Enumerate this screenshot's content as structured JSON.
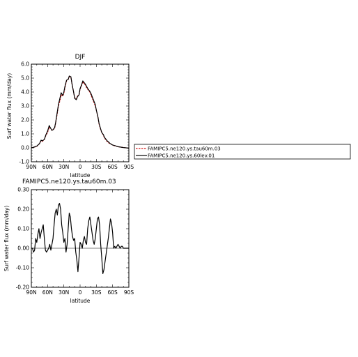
{
  "chart_data": [
    {
      "type": "line",
      "title": "DJF",
      "xlabel": "latitude",
      "ylabel": "Surf water flux (mm/day)",
      "x_categories": [
        "90N",
        "60N",
        "30N",
        "0",
        "30S",
        "60S",
        "90S"
      ],
      "xlim": [
        90,
        -90
      ],
      "ylim": [
        -1.0,
        6.0
      ],
      "y_ticks": [
        "-1.0",
        "0.0",
        "1.0",
        "2.0",
        "3.0",
        "4.0",
        "5.0",
        "6.0"
      ],
      "x": [
        90,
        85,
        80,
        75,
        72,
        70,
        66,
        63,
        60,
        57,
        55,
        52,
        50,
        47,
        45,
        42,
        40,
        37,
        35,
        32,
        30,
        28,
        25,
        22,
        20,
        17,
        15,
        12,
        10,
        7,
        5,
        2,
        0,
        -3,
        -5,
        -7,
        -10,
        -12,
        -15,
        -18,
        -20,
        -22,
        -25,
        -28,
        -30,
        -33,
        -35,
        -38,
        -40,
        -43,
        -45,
        -48,
        -50,
        -53,
        -55,
        -58,
        -60,
        -63,
        -65,
        -68,
        -70,
        -75,
        -80,
        -85,
        -90
      ],
      "series": [
        {
          "name": "FAMIPC5.ne120.ys.tau60m.03",
          "color": "#d21414",
          "dash": true,
          "values": [
            0.0,
            0.05,
            0.1,
            0.3,
            0.5,
            0.45,
            0.6,
            0.9,
            1.1,
            1.5,
            1.4,
            1.25,
            1.3,
            1.4,
            1.8,
            2.5,
            3.0,
            3.4,
            3.8,
            3.7,
            3.9,
            4.3,
            4.8,
            4.9,
            5.1,
            5.05,
            4.6,
            4.0,
            3.6,
            3.5,
            3.7,
            3.8,
            4.2,
            4.5,
            4.75,
            4.6,
            4.5,
            4.3,
            4.15,
            4.0,
            3.8,
            3.6,
            3.3,
            3.0,
            2.7,
            2.2,
            1.7,
            1.3,
            1.1,
            0.9,
            0.7,
            0.55,
            0.45,
            0.35,
            0.3,
            0.25,
            0.2,
            0.15,
            0.15,
            0.1,
            0.08,
            0.05,
            0.02,
            0.0,
            -0.03
          ]
        },
        {
          "name": "FAMIPC5.ne120.ys.60lev.01",
          "color": "#000000",
          "dash": false,
          "values": [
            0.0,
            0.05,
            0.12,
            0.3,
            0.55,
            0.5,
            0.6,
            0.95,
            1.2,
            1.6,
            1.45,
            1.25,
            1.3,
            1.45,
            1.85,
            2.6,
            3.1,
            3.6,
            3.95,
            3.75,
            4.0,
            4.4,
            4.85,
            4.9,
            5.15,
            5.1,
            4.6,
            4.0,
            3.55,
            3.45,
            3.65,
            3.8,
            4.25,
            4.55,
            4.8,
            4.7,
            4.55,
            4.4,
            4.2,
            4.05,
            3.9,
            3.7,
            3.4,
            3.1,
            2.7,
            2.2,
            1.75,
            1.35,
            1.1,
            0.95,
            0.75,
            0.6,
            0.5,
            0.4,
            0.32,
            0.25,
            0.2,
            0.17,
            0.15,
            0.1,
            0.08,
            0.05,
            0.02,
            0.0,
            -0.03
          ]
        }
      ],
      "legend": {
        "placement": "right",
        "entries": [
          "FAMIPC5.ne120.ys.tau60m.03",
          "FAMIPC5.ne120.ys.60lev.01"
        ]
      }
    },
    {
      "type": "line",
      "title": "FAMIPC5.ne120.ys.tau60m.03",
      "xlabel": "latitude",
      "ylabel": "Surf water flux (mm/day)",
      "x_categories": [
        "90N",
        "60N",
        "30N",
        "0",
        "30S",
        "60S",
        "90S"
      ],
      "xlim": [
        90,
        -90
      ],
      "ylim": [
        -0.2,
        0.3
      ],
      "y_ticks": [
        "-0.20",
        "-0.10",
        "0.00",
        "0.10",
        "0.20",
        "0.30"
      ],
      "x": [
        90,
        88,
        86,
        84,
        82,
        80,
        78,
        76,
        74,
        72,
        70,
        68,
        66,
        64,
        62,
        60,
        58,
        56,
        54,
        52,
        50,
        48,
        46,
        44,
        42,
        40,
        38,
        36,
        34,
        32,
        30,
        28,
        26,
        24,
        22,
        20,
        18,
        16,
        14,
        12,
        10,
        8,
        6,
        4,
        2,
        0,
        -2,
        -4,
        -6,
        -8,
        -10,
        -12,
        -14,
        -16,
        -18,
        -20,
        -22,
        -24,
        -26,
        -28,
        -30,
        -32,
        -34,
        -36,
        -38,
        -40,
        -42,
        -44,
        -46,
        -48,
        -50,
        -52,
        -54,
        -56,
        -58,
        -60,
        -62,
        -64,
        -66,
        -68,
        -70,
        -72,
        -74,
        -76,
        -78,
        -80,
        -82,
        -84,
        -86,
        -88,
        -90
      ],
      "series": [
        {
          "name": "",
          "color": "#000000",
          "dash": false,
          "values": [
            0.0,
            0.0,
            -0.02,
            -0.01,
            0.05,
            0.03,
            0.07,
            0.1,
            0.05,
            0.08,
            0.1,
            0.12,
            0.05,
            -0.01,
            -0.02,
            -0.01,
            0.0,
            0.02,
            -0.01,
            0.02,
            0.05,
            0.12,
            0.18,
            0.2,
            0.17,
            0.22,
            0.23,
            0.2,
            0.12,
            0.08,
            0.03,
            0.05,
            -0.02,
            0.02,
            0.1,
            0.18,
            0.16,
            0.1,
            0.06,
            0.04,
            0.05,
            -0.02,
            -0.06,
            -0.12,
            -0.05,
            0.03,
            0.02,
            0.0,
            0.04,
            0.06,
            0.03,
            0.02,
            0.1,
            0.14,
            0.16,
            0.12,
            0.08,
            0.04,
            0.02,
            0.05,
            0.1,
            0.15,
            0.16,
            0.12,
            0.02,
            -0.05,
            -0.13,
            -0.11,
            -0.07,
            -0.03,
            0.01,
            0.05,
            0.1,
            0.15,
            0.13,
            0.08,
            0.0,
            0.01,
            0.0,
            0.01,
            0.02,
            0.01,
            0.0,
            0.01,
            0.01,
            0.0,
            0.0,
            0.0,
            0.0,
            0.0,
            0.0
          ]
        }
      ]
    }
  ]
}
